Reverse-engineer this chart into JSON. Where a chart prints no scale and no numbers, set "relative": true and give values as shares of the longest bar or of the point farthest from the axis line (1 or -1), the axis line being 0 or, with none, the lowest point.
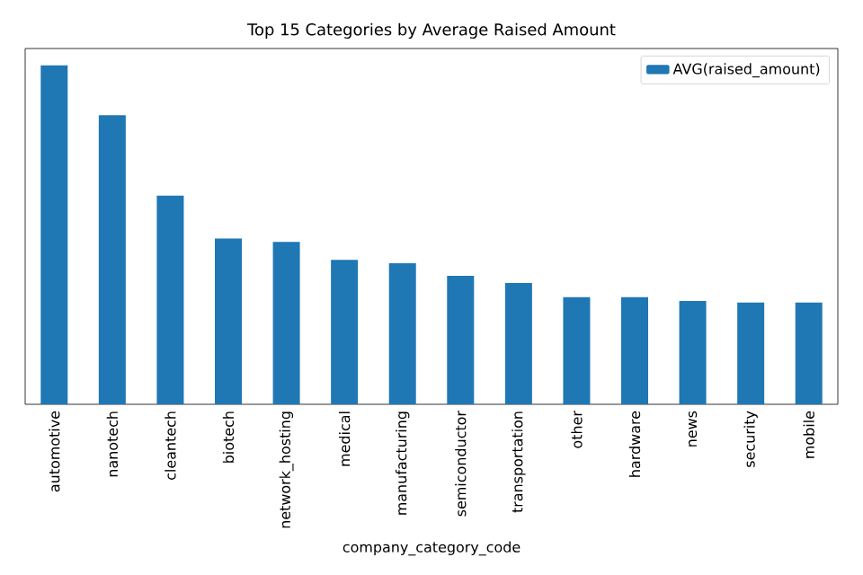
{
  "chart_data": {
    "type": "bar",
    "title": "Top 15 Categories by Average Raised Amount",
    "xlabel": "company_category_code",
    "categories": [
      "automotive",
      "nanotech",
      "cleantech",
      "biotech",
      "network_hosting",
      "medical",
      "manufacturing",
      "semiconductor",
      "transportation",
      "other",
      "hardware",
      "news",
      "security",
      "mobile"
    ],
    "series": [
      {
        "name": "AVG(raised_amount)",
        "color": "#1f77b4",
        "values": [
          1,
          0.853,
          0.616,
          0.489,
          0.479,
          0.426,
          0.416,
          0.379,
          0.358,
          0.316,
          0.316,
          0.305,
          0.3,
          0.3
        ]
      }
    ],
    "relative": true,
    "legend": "top right"
  }
}
